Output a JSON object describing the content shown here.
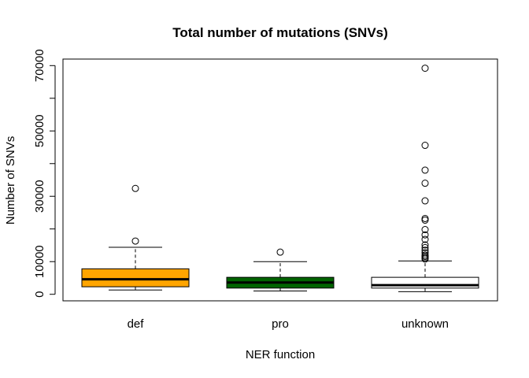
{
  "chart_data": {
    "type": "box",
    "title": "Total number of mutations (SNVs)",
    "xlabel": "NER function",
    "ylabel": "Number of SNVs",
    "categories": [
      "def",
      "pro",
      "unknown"
    ],
    "ylim": [
      -2000,
      72000
    ],
    "yticks": [
      0,
      10000,
      20000,
      30000,
      40000,
      50000,
      60000,
      70000
    ],
    "ytick_labels": [
      "0",
      "10000",
      "",
      "30000",
      "",
      "50000",
      "",
      "70000"
    ],
    "grid": false,
    "boxes": [
      {
        "category": "def",
        "color": "#FFA500",
        "whisker_low": 1300,
        "q1": 2300,
        "median": 4600,
        "q3": 7800,
        "whisker_high": 14400,
        "outliers": [
          16300,
          32400
        ]
      },
      {
        "category": "pro",
        "color": "#006400",
        "whisker_low": 1000,
        "q1": 1900,
        "median": 3600,
        "q3": 5200,
        "whisker_high": 10000,
        "outliers": [
          12900
        ]
      },
      {
        "category": "unknown",
        "color": "#FFFFFF",
        "whisker_low": 800,
        "q1": 1900,
        "median": 2800,
        "q3": 5200,
        "whisker_high": 10200,
        "outliers": [
          10800,
          11200,
          11600,
          12000,
          12700,
          13500,
          14300,
          15100,
          16800,
          18200,
          19800,
          22700,
          23200,
          28600,
          34000,
          38000,
          45600,
          69200
        ]
      }
    ]
  }
}
